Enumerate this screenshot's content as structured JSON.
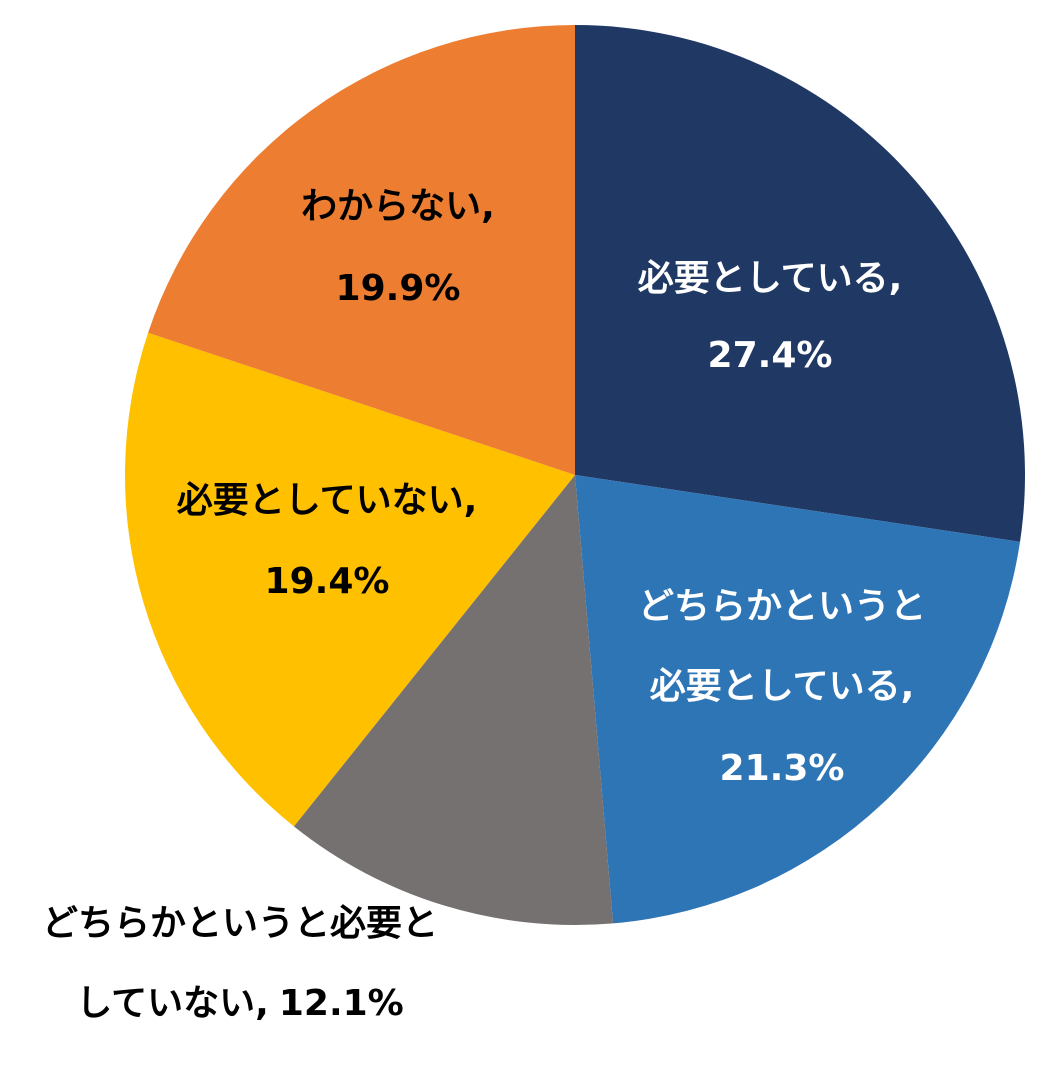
{
  "chart_data": {
    "type": "pie",
    "categories": [
      [
        "必要としている,"
      ],
      [
        "どちらかというと",
        "必要としている,"
      ],
      [
        "どちらかというと必要と",
        "していない,"
      ],
      [
        "必要としていない,"
      ],
      [
        "わからない,"
      ]
    ],
    "values": [
      27.4,
      21.3,
      12.1,
      19.4,
      19.9
    ],
    "value_labels": [
      "27.4%",
      "21.3%",
      "12.1%",
      "19.4%",
      "19.9%"
    ],
    "colors": [
      "#203864",
      "#2e75b6",
      "#767171",
      "#ffc000",
      "#ed7d31"
    ]
  }
}
